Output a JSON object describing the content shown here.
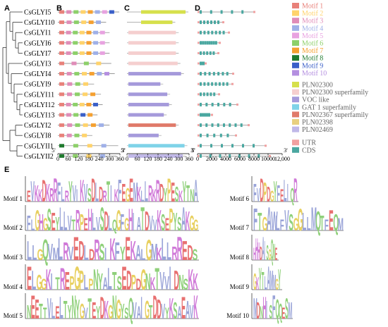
{
  "panels": {
    "A": "A",
    "B": "B",
    "C": "C",
    "D": "D",
    "E": "E"
  },
  "genes": [
    "CsGLYI5",
    "CsGLYI10",
    "CsGLYI1",
    "CsGLYI6",
    "CsGLYI7",
    "CsGLYI3",
    "CsGLYI4",
    "CsGLYI9",
    "CsGLYI11",
    "CsGLYI12",
    "CsGLYI13",
    "CsGLYI2",
    "CsGLYI8",
    "CsGLYII1",
    "CsGLYII2"
  ],
  "motif_legend": [
    {
      "label": "Motif 1",
      "color": "#e8817a"
    },
    {
      "label": "Motif 2",
      "color": "#ffd36b"
    },
    {
      "label": "Motif 3",
      "color": "#e08cb8"
    },
    {
      "label": "Motif 4",
      "color": "#9fb0e8"
    },
    {
      "label": "Motif 5",
      "color": "#e8a2e0"
    },
    {
      "label": "Motif 6",
      "color": "#8dd06a"
    },
    {
      "label": "Motif 7",
      "color": "#f5a030"
    },
    {
      "label": "Motif 8",
      "color": "#1f7a2e"
    },
    {
      "label": "Motif 9",
      "color": "#3a5fc8"
    },
    {
      "label": "Motif 10",
      "color": "#b48fe0"
    }
  ],
  "domain_legend": [
    {
      "label": "PLN02300",
      "color": "#d6e04c"
    },
    {
      "label": "PLN02300 superfamily",
      "color": "#f5cfcf"
    },
    {
      "label": "VOC like",
      "color": "#a59adb"
    },
    {
      "label": "GAT 1 superfamily",
      "color": "#7fd3e8"
    },
    {
      "label": "PLN02367 superfamily",
      "color": "#e07a6a"
    },
    {
      "label": "PLN02398",
      "color": "#e8d080"
    },
    {
      "label": "PLN02469",
      "color": "#c0b8e8"
    }
  ],
  "structure_legend": [
    {
      "label": "UTR",
      "color": "#f0a0a0"
    },
    {
      "label": "CDS",
      "color": "#4aa7a0"
    }
  ],
  "axis_b": {
    "ticks": [
      "0",
      "60",
      "120",
      "180",
      "240",
      "300",
      "360"
    ],
    "start": "5'",
    "end": "3'"
  },
  "axis_c": {
    "ticks": [
      "0",
      "60",
      "120",
      "180",
      "240",
      "300",
      "360"
    ],
    "start": "5'",
    "end": "3'"
  },
  "axis_d": {
    "ticks": [
      "0",
      "2000",
      "4000",
      "6000",
      "8000",
      "10000",
      "12,000"
    ],
    "start": "5'",
    "end": "3'"
  },
  "protein_lengths": [
    356,
    280,
    300,
    300,
    300,
    310,
    330,
    210,
    250,
    260,
    230,
    300,
    200,
    350,
    340
  ],
  "gene_lengths": [
    8200,
    3800,
    4600,
    3300,
    3100,
    1300,
    5200,
    5100,
    3200,
    5800,
    2200,
    7400,
    5600,
    9800,
    10400
  ],
  "domains": [
    "PLN02300",
    "PLN02300",
    "PLN02300 superfamily",
    "PLN02300 superfamily",
    "PLN02300 superfamily",
    "PLN02300 superfamily",
    "VOC like",
    "VOC like",
    "VOC like",
    "VOC like",
    "VOC like",
    "PLN02367 superfamily",
    "VOC like",
    "GAT 1 superfamily",
    "PLN02469"
  ],
  "motifs": [
    {
      "label": "Motif 1",
      "seq": "EVKKDKRRFLRYVIKVSDLDRTIKFEGEMKLLRKRDYPESKYTNA"
    },
    {
      "label": "Motif 2",
      "seq": "FLGHGSEYLLVTRPEHLVSDLQGFGHIATDVVKSEPYSAKGG"
    },
    {
      "label": "Motif 3",
      "seq": "LLGQVMLRVEDLDRSIKFYEKALGMKLLRREDS"
    },
    {
      "label": "Motif 4",
      "seq": "ELGGKITREPGPLPNYALTSEDPDGNKTVVIDNSKK"
    },
    {
      "label": "Motif 5",
      "seq": "NEETTVLELTYNYGVTEYDKGNGYSQVAIGTDDVYKSAEAVK"
    },
    {
      "label": "Motif 6",
      "seq": "FVDPDGYFELIQR"
    },
    {
      "label": "Motif 7",
      "seq": "FTGAWLFVSGGLLMQTFEQM"
    },
    {
      "label": "Motif 8",
      "seq": "HHHDAISGQNE"
    },
    {
      "label": "Motif 9",
      "seq": "GKYTLAMMGY"
    },
    {
      "label": "Motif 10",
      "seq": "MDNHISFQQESM"
    }
  ]
}
